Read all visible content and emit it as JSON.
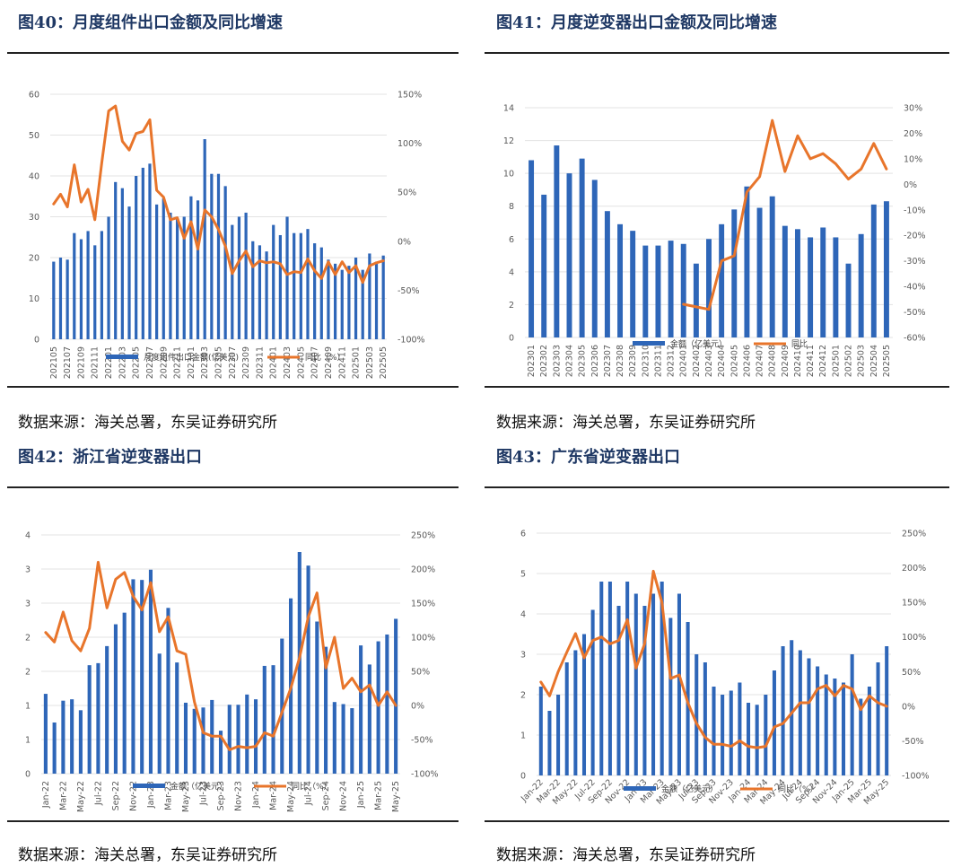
{
  "colors": {
    "bar": "#2e66b8",
    "line": "#e8752b",
    "grid": "#e3e3e3",
    "title": "#1f3864"
  },
  "figures": [
    {
      "title": "图40：月度组件出口金额及同比增速",
      "source": "数据来源：海关总署，东吴证券研究所"
    },
    {
      "title": "图41：月度逆变器出口金额及同比增速",
      "source": "数据来源：海关总署，东吴证券研究所"
    },
    {
      "title": "图42：浙江省逆变器出口",
      "source": "数据来源：海关总署，东吴证券研究所"
    },
    {
      "title": "图43：广东省逆变器出口",
      "source": "数据来源：海关总署，东吴证券研究所"
    }
  ],
  "chart_data": [
    {
      "type": "bar",
      "x": [
        "202105",
        "202106",
        "202107",
        "202108",
        "202109",
        "202110",
        "202111",
        "202112",
        "202201",
        "202202",
        "202203",
        "202204",
        "202205",
        "202206",
        "202207",
        "202208",
        "202209",
        "202210",
        "202211",
        "202212",
        "202301",
        "202302",
        "202303",
        "202304",
        "202305",
        "202306",
        "202307",
        "202308",
        "202309",
        "202310",
        "202311",
        "202312",
        "202401",
        "202402",
        "202403",
        "202404",
        "202405",
        "202406",
        "202407",
        "202408",
        "202409",
        "202410",
        "202411",
        "202412",
        "202501",
        "202502",
        "202503",
        "202504",
        "202505"
      ],
      "x_tick_labels": [
        "202105",
        "202107",
        "202109",
        "202111",
        "202201",
        "202203",
        "202205",
        "202207",
        "202209",
        "202211",
        "202301",
        "202303",
        "202305",
        "202307",
        "202309",
        "202311",
        "202401",
        "202403",
        "202405",
        "202407",
        "202409",
        "202411",
        "202501",
        "202503",
        "202505"
      ],
      "series": [
        {
          "name": "月度组件出口金额(亿美元)",
          "type": "bar",
          "axis": "left",
          "values": [
            19,
            20,
            19.5,
            26,
            24.5,
            26.5,
            23,
            26.5,
            30,
            38.5,
            37,
            32.5,
            40,
            42,
            43,
            33,
            34.5,
            31,
            29.5,
            30,
            35,
            34,
            49,
            40.5,
            40.5,
            37.5,
            28,
            30,
            31,
            24,
            23,
            21.5,
            28,
            25.5,
            30,
            26,
            26,
            27,
            23.5,
            22.5,
            19.5,
            18.5,
            17,
            18,
            20,
            17,
            21,
            19,
            20.5
          ]
        },
        {
          "name": "同比（%）",
          "type": "line",
          "axis": "right",
          "values": [
            38,
            48,
            35,
            78,
            40,
            53,
            22,
            80,
            133,
            138,
            102,
            93,
            110,
            112,
            124,
            52,
            45,
            22,
            24,
            3,
            20,
            -8,
            32,
            25,
            12,
            -5,
            -33,
            -20,
            -10,
            -26,
            -20,
            -22,
            -21,
            -23,
            -34,
            -31,
            -32,
            -18,
            -30,
            -38,
            -21,
            -34,
            -21,
            -32,
            -25,
            -42,
            -25,
            -22,
            -20
          ]
        }
      ],
      "left_axis": {
        "min": 0,
        "max": 60,
        "ticks": [
          0,
          10,
          20,
          30,
          40,
          50,
          60
        ]
      },
      "right_axis": {
        "min": -100,
        "max": 150,
        "ticks": [
          "-100%",
          "-50%",
          "0%",
          "50%",
          "100%",
          "150%"
        ]
      },
      "legend": [
        "月度组件出口金额(亿美元)",
        "同比（%）"
      ]
    },
    {
      "type": "bar",
      "x": [
        "202301",
        "202302",
        "202303",
        "202304",
        "202305",
        "202306",
        "202307",
        "202308",
        "202309",
        "202310",
        "202311",
        "202312",
        "202401",
        "202402",
        "202403",
        "202404",
        "202405",
        "202406",
        "202407",
        "202408",
        "202409",
        "202410",
        "202411",
        "202412",
        "202501",
        "202502",
        "202503",
        "202504",
        "202505"
      ],
      "series": [
        {
          "name": "金额（亿美元）",
          "type": "bar",
          "axis": "left",
          "values": [
            10.8,
            8.7,
            11.7,
            10,
            10.9,
            9.6,
            7.7,
            6.9,
            6.5,
            5.6,
            5.6,
            5.9,
            5.7,
            4.5,
            6,
            6.9,
            7.8,
            9.2,
            7.9,
            8.6,
            6.8,
            6.6,
            6.1,
            6.7,
            6.1,
            4.5,
            6.3,
            8.1,
            8.3
          ]
        },
        {
          "name": "同比",
          "type": "line",
          "axis": "right",
          "values": [
            null,
            null,
            null,
            null,
            null,
            null,
            null,
            null,
            null,
            null,
            null,
            null,
            -47,
            -48,
            -49,
            -30,
            -28,
            -3,
            3,
            25,
            5,
            19,
            10,
            12,
            8,
            2,
            6,
            16,
            6
          ]
        }
      ],
      "left_axis": {
        "min": 0,
        "max": 14,
        "ticks": [
          0,
          2,
          4,
          6,
          8,
          10,
          12,
          14
        ]
      },
      "right_axis": {
        "min": -60,
        "max": 30,
        "ticks": [
          "-60%",
          "-50%",
          "-40%",
          "-30%",
          "-20%",
          "-10%",
          "0%",
          "10%",
          "20%",
          "30%"
        ]
      },
      "legend": [
        "金额（亿美元）",
        "同比"
      ]
    },
    {
      "type": "bar",
      "x": [
        "Jan-22",
        "Feb-22",
        "Mar-22",
        "Apr-22",
        "May-22",
        "Jun-22",
        "Jul-22",
        "Aug-22",
        "Sep-22",
        "Oct-22",
        "Nov-22",
        "Dec-22",
        "Jan-23",
        "Feb-23",
        "Mar-23",
        "Apr-23",
        "May-23",
        "Jun-23",
        "Jul-23",
        "Aug-23",
        "Sep-23",
        "Oct-23",
        "Nov-23",
        "Dec-23",
        "Jan-24",
        "Feb-24",
        "Mar-24",
        "Apr-24",
        "May-24",
        "Jun-24",
        "Jul-24",
        "Aug-24",
        "Sep-24",
        "Oct-24",
        "Nov-24",
        "Dec-24",
        "Jan-25",
        "Feb-25",
        "Mar-25",
        "Apr-25",
        "May-25"
      ],
      "x_tick_labels": [
        "Jan-22",
        "Mar-22",
        "May-22",
        "Jul-22",
        "Sep-22",
        "Nov-22",
        "Jan-23",
        "Mar-23",
        "May-23",
        "Jul-23",
        "Sep-23",
        "Nov-23",
        "Jan-24",
        "Mar-24",
        "May-24",
        "Jul-24",
        "Sep-24",
        "Nov-24",
        "Jan-25",
        "Mar-25",
        "May-25"
      ],
      "y_tick_labels": [
        "0",
        "1",
        "1",
        "2",
        "2",
        "3",
        "3",
        "4"
      ],
      "series": [
        {
          "name": "金额（亿美元）",
          "type": "bar",
          "axis": "left",
          "values": [
            1.17,
            0.75,
            1.07,
            1.09,
            0.93,
            1.59,
            1.62,
            1.87,
            2.19,
            2.36,
            2.85,
            2.84,
            2.99,
            1.76,
            2.43,
            1.63,
            1.04,
            0.95,
            0.97,
            1.08,
            0.63,
            1.01,
            1.01,
            1.16,
            1.09,
            1.58,
            1.59,
            1.98,
            2.57,
            3.25,
            3.05,
            2.23,
            1.86,
            1.05,
            1.02,
            0.96,
            1.88,
            1.6,
            1.94,
            2.04,
            2.27
          ]
        },
        {
          "name": "同比（%）",
          "type": "line",
          "axis": "right",
          "values": [
            107,
            93,
            137,
            95,
            80,
            113,
            210,
            143,
            185,
            195,
            160,
            140,
            180,
            108,
            130,
            80,
            75,
            5,
            -40,
            -45,
            -45,
            -65,
            -60,
            -62,
            -60,
            -40,
            -45,
            -10,
            25,
            70,
            130,
            165,
            55,
            100,
            25,
            40,
            20,
            30,
            0,
            20,
            0
          ]
        }
      ],
      "left_axis": {
        "min": 0,
        "max": 3.5
      },
      "right_axis": {
        "min": -100,
        "max": 250,
        "ticks": [
          "-100%",
          "-50%",
          "0%",
          "50%",
          "100%",
          "150%",
          "200%",
          "250%"
        ]
      },
      "legend": [
        "金额（亿美元）",
        "同比（%）"
      ]
    },
    {
      "type": "bar",
      "x": [
        "Jan-22",
        "Feb-22",
        "Mar-22",
        "Apr-22",
        "May-22",
        "Jun-22",
        "Jul-22",
        "Aug-22",
        "Sep-22",
        "Oct-22",
        "Nov-22",
        "Dec-22",
        "Jan-23",
        "Feb-23",
        "Mar-23",
        "Apr-23",
        "May-23",
        "Jun-23",
        "Jul-23",
        "Aug-23",
        "Sep-23",
        "Oct-23",
        "Nov-23",
        "Dec-23",
        "Jan-24",
        "Feb-24",
        "Mar-24",
        "Apr-24",
        "May-24",
        "Jun-24",
        "Jul-24",
        "Aug-24",
        "Sep-24",
        "Oct-24",
        "Nov-24",
        "Dec-24",
        "Jan-25",
        "Feb-25",
        "Mar-25",
        "Apr-25",
        "May-25"
      ],
      "x_tick_labels": [
        "Jan-22",
        "Mar-22",
        "May-22",
        "Jul-22",
        "Sep-22",
        "Nov-22",
        "Jan-23",
        "Mar-23",
        "May-23",
        "Jul-23",
        "Sep-23",
        "Nov-23",
        "Jan-24",
        "Mar-24",
        "May-24",
        "Jul-24",
        "Sep-24",
        "Nov-24",
        "Jan-25",
        "Mar-25",
        "May-25"
      ],
      "series": [
        {
          "name": "金额（亿美元）",
          "type": "bar",
          "axis": "left",
          "values": [
            2.2,
            1.6,
            2,
            2.8,
            3.1,
            3.5,
            4.1,
            4.8,
            4.8,
            4.2,
            4.8,
            4.5,
            4.2,
            4.5,
            4.8,
            3.9,
            4.5,
            3.8,
            3.0,
            2.8,
            2.2,
            2.0,
            2.1,
            2.3,
            1.8,
            1.75,
            2.0,
            2.6,
            3.2,
            3.35,
            3.1,
            2.9,
            2.7,
            2.5,
            2.4,
            2.3,
            3.0,
            1.9,
            2.2,
            2.8,
            3.2
          ]
        },
        {
          "name": "同比（%）",
          "type": "line",
          "axis": "right",
          "values": [
            35,
            15,
            50,
            78,
            105,
            70,
            95,
            100,
            90,
            95,
            125,
            55,
            90,
            195,
            150,
            40,
            45,
            5,
            -25,
            -45,
            -55,
            -55,
            -58,
            -50,
            -58,
            -60,
            -58,
            -30,
            -25,
            -10,
            5,
            5,
            25,
            30,
            15,
            30,
            25,
            -5,
            15,
            5,
            0
          ]
        }
      ],
      "left_axis": {
        "min": 0,
        "max": 6,
        "ticks": [
          0,
          1,
          2,
          3,
          4,
          5,
          6
        ]
      },
      "right_axis": {
        "min": -100,
        "max": 250,
        "ticks": [
          "-100%",
          "-50%",
          "0%",
          "50%",
          "100%",
          "150%",
          "200%",
          "250%"
        ]
      },
      "legend": [
        "金额（亿美元）",
        "同比（%）"
      ]
    }
  ]
}
